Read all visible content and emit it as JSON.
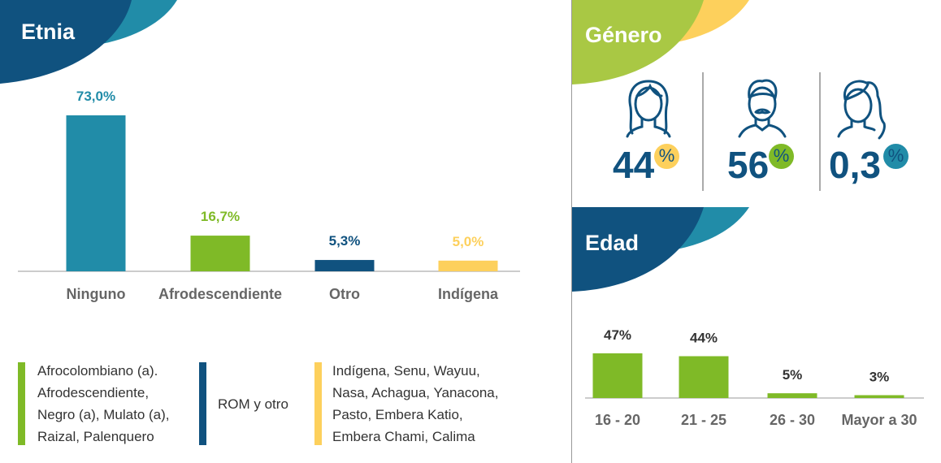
{
  "colors": {
    "dark_blue": "#10527f",
    "teal": "#218ca8",
    "green": "#7fba27",
    "light_green": "#a9c844",
    "yellow": "#fdd05c"
  },
  "etnia": {
    "title": "Etnia"
  },
  "genero": {
    "title": "Género",
    "items": [
      {
        "icon": "woman-icon",
        "value": "44",
        "unit": "%",
        "badge_color": "#fdd05c"
      },
      {
        "icon": "man-icon",
        "value": "56",
        "unit": "%",
        "badge_color": "#7fba27"
      },
      {
        "icon": "person-long-hair-icon",
        "value": "0,3",
        "unit": "%",
        "badge_color": "#218ca8"
      }
    ]
  },
  "edad": {
    "title": "Edad"
  },
  "legend": [
    {
      "color": "#7fba27",
      "text": "Afrocolombiano (a).\nAfrodescendiente,\nNegro (a), Mulato (a),\nRaizal, Palenquero"
    },
    {
      "color": "#10527f",
      "text": "ROM y otro"
    },
    {
      "color": "#fdd05c",
      "text": "Indígena, Senu, Wayuu,\nNasa, Achagua, Yanacona,\nPasto, Embera Katio,\nEmbera Chami, Calima"
    }
  ],
  "chart_data": [
    {
      "type": "bar",
      "title": "Etnia",
      "categories": [
        "Ninguno",
        "Afrodescendiente",
        "Otro",
        "Indígena"
      ],
      "values": [
        73.0,
        16.7,
        5.3,
        5.0
      ],
      "data_labels": [
        "73,0%",
        "16,7%",
        "5,3%",
        "5,0%"
      ],
      "colors": [
        "#218ca8",
        "#7fba27",
        "#10527f",
        "#fdd05c"
      ],
      "ylim": [
        0,
        73
      ],
      "grid": false
    },
    {
      "type": "bar",
      "title": "Edad",
      "categories": [
        "16 - 20",
        "21 - 25",
        "26 - 30",
        "Mayor a 30"
      ],
      "values": [
        47,
        44,
        5,
        3
      ],
      "data_labels": [
        "47%",
        "44%",
        "5%",
        "3%"
      ],
      "colors": [
        "#7fba27",
        "#7fba27",
        "#7fba27",
        "#7fba27"
      ],
      "ylim": [
        0,
        47
      ],
      "grid": false
    }
  ]
}
